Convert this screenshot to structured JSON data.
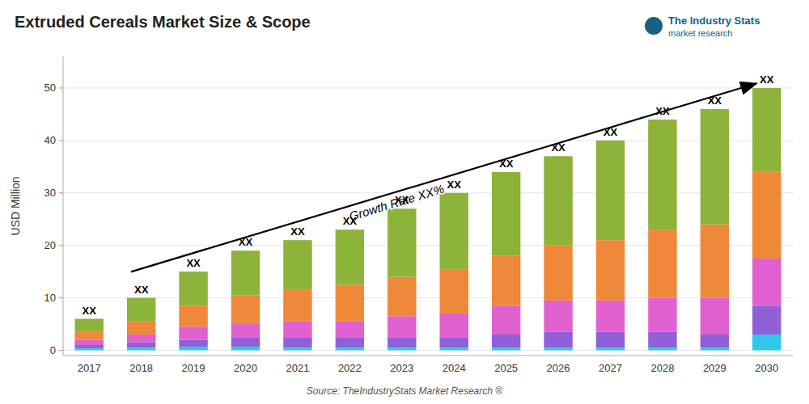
{
  "chart_data": {
    "type": "bar",
    "stacked": true,
    "title": "Extruded Cereals Market Size & Scope",
    "y_label": "USD Million",
    "categories": [
      "2017",
      "2018",
      "2019",
      "2020",
      "2021",
      "2022",
      "2023",
      "2024",
      "2025",
      "2026",
      "2027",
      "2028",
      "2029",
      "2030"
    ],
    "series": [
      {
        "color": "#30c8e8",
        "values": [
          0.4,
          0.5,
          0.7,
          0.7,
          0.5,
          0.5,
          0.5,
          0.5,
          0.5,
          0.5,
          0.5,
          0.5,
          0.5,
          3.0
        ]
      },
      {
        "color": "#9060d8",
        "values": [
          0.6,
          1.0,
          1.3,
          1.8,
          2.0,
          2.0,
          2.0,
          2.0,
          2.5,
          3.0,
          3.0,
          3.0,
          2.5,
          5.5
        ]
      },
      {
        "color": "#e060d0",
        "values": [
          1.0,
          1.5,
          2.5,
          2.5,
          3.0,
          3.0,
          4.0,
          4.5,
          5.5,
          6.0,
          6.0,
          6.5,
          7.0,
          9.0
        ]
      },
      {
        "color": "#f0883a",
        "values": [
          1.5,
          2.5,
          4.0,
          5.5,
          6.0,
          7.0,
          7.5,
          8.5,
          9.5,
          10.5,
          11.5,
          13.0,
          14.0,
          16.5
        ]
      },
      {
        "color": "#8db33a",
        "values": [
          2.5,
          4.5,
          6.5,
          8.5,
          9.5,
          10.5,
          13.0,
          14.5,
          16.0,
          17.0,
          19.0,
          21.0,
          22.0,
          16.0
        ]
      }
    ],
    "total_labels": [
      "XX",
      "XX",
      "XX",
      "XX",
      "XX",
      "XX",
      "XX",
      "XX",
      "XX",
      "XX",
      "XX",
      "XX",
      "XX",
      "XX"
    ],
    "annotations": [
      "Growth Rate XX%"
    ],
    "source": "Source: TheIndustryStats Market Research ®",
    "logo_text": "The Industry Stats",
    "logo_subtext": "market research",
    "ylim": [
      -1,
      56
    ],
    "yticks": [
      0,
      10,
      20,
      30,
      40,
      50
    ],
    "grid": true
  }
}
